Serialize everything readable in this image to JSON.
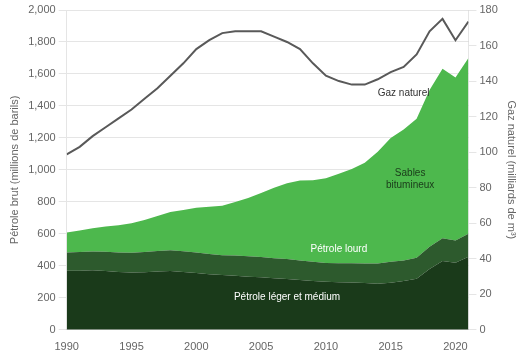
{
  "chart_data": {
    "type": "area",
    "stacked": true,
    "grid": true,
    "x": [
      1990,
      1991,
      1992,
      1993,
      1994,
      1995,
      1996,
      1997,
      1998,
      1999,
      2000,
      2001,
      2002,
      2003,
      2004,
      2005,
      2006,
      2007,
      2008,
      2009,
      2010,
      2011,
      2012,
      2013,
      2014,
      2015,
      2016,
      2017,
      2018,
      2019,
      2020,
      2021
    ],
    "xlim": [
      1990,
      2021
    ],
    "xticks": [
      1990,
      1995,
      2000,
      2005,
      2010,
      2015,
      2020
    ],
    "ylim": [
      0,
      2000
    ],
    "yticks": [
      0,
      200,
      400,
      600,
      800,
      {
        "value": 1000,
        "label": "1,000"
      },
      {
        "value": 1200,
        "label": "1,200"
      },
      {
        "value": 1400,
        "label": "1,400"
      },
      {
        "value": 1600,
        "label": "1,600"
      },
      {
        "value": 1800,
        "label": "1,800"
      },
      {
        "value": 2000,
        "label": "2,000"
      }
    ],
    "y2lim": [
      0,
      180
    ],
    "y2ticks": [
      0,
      20,
      40,
      60,
      80,
      100,
      120,
      140,
      160,
      180
    ],
    "ylabel": "Pétrole brut (millions de barils)",
    "y2label": "Gaz naturel (milliards de m³)",
    "series": [
      {
        "type": "area",
        "color": "#1a3a1a",
        "values": [
          369,
          370,
          372,
          368,
          362,
          358,
          360,
          365,
          368,
          362,
          355,
          348,
          342,
          338,
          332,
          328,
          322,
          318,
          312,
          305,
          300,
          298,
          296,
          292,
          288,
          295,
          305,
          320,
          380,
          430,
          420,
          457
        ]
      },
      {
        "type": "area",
        "color": "#2d5a2d",
        "values": [
          114,
          116,
          118,
          120,
          122,
          124,
          126,
          128,
          130,
          130,
          128,
          126,
          124,
          126,
          128,
          128,
          126,
          124,
          122,
          120,
          118,
          118,
          120,
          122,
          126,
          130,
          128,
          130,
          140,
          143,
          138,
          143
        ]
      },
      {
        "type": "area",
        "color": "#4db84d",
        "values": [
          125,
          135,
          145,
          158,
          170,
          185,
          200,
          218,
          238,
          258,
          280,
          295,
          310,
          335,
          365,
          400,
          440,
          475,
          500,
          510,
          530,
          560,
          590,
          630,
          700,
          775,
          820,
          870,
          980,
          1060,
          1020,
          1100
        ]
      },
      {
        "type": "line",
        "axis": "y2",
        "color": "#595959",
        "values": [
          98.8,
          103,
          109,
          114,
          119,
          124,
          130,
          136,
          143,
          150,
          158,
          163,
          167,
          168,
          168,
          168,
          165,
          162,
          158,
          150,
          143,
          140,
          138,
          138,
          141,
          145,
          148,
          155,
          168,
          175,
          163,
          173.5
        ]
      }
    ],
    "annotations": [
      {
        "text": "Pétrole léger et médium",
        "x": 2007,
        "y": 175,
        "color": "#ffffff"
      },
      {
        "text": "Pétrole lourd",
        "x": 2011,
        "y": 475,
        "color": "#ffffff"
      },
      {
        "text": "Sables\nbitumineux",
        "x": 2016.5,
        "y": 870,
        "color": "#1a3a1a"
      },
      {
        "text": "Gaz naturel",
        "x": 2014.0,
        "y": 133,
        "axis": "y2",
        "color": "#333333"
      }
    ]
  }
}
